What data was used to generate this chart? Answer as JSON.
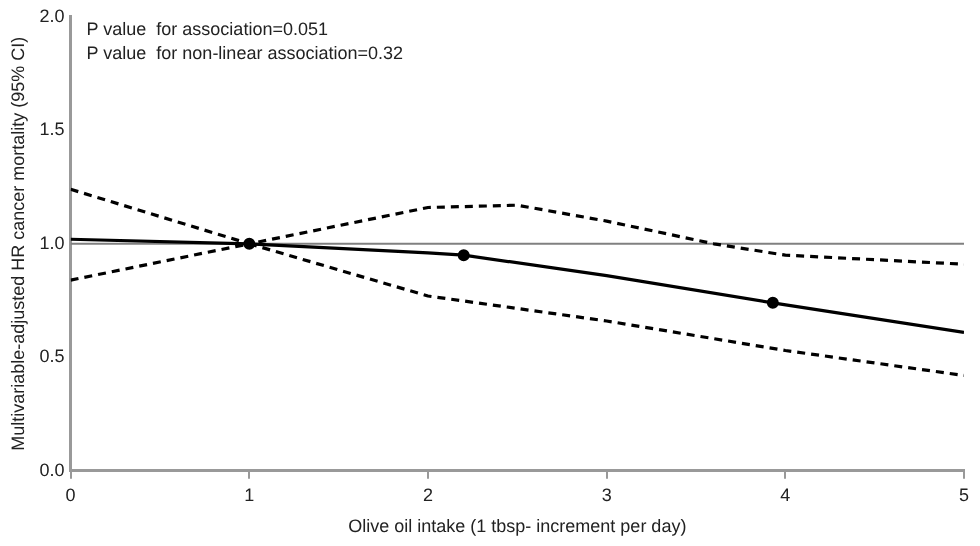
{
  "chart_data": {
    "type": "line",
    "xlabel": "Olive oil intake (1 tbsp- increment per day)",
    "ylabel": "Multivariable-adjusted HR cancer mortality (95% CI)",
    "annotations": [
      "P value  for association=0.051",
      "P value  for non-linear association=0.32"
    ],
    "series": [
      {
        "color": "#000000",
        "line_style": "solid",
        "x": [
          0,
          1,
          2,
          2.2,
          3,
          3.93,
          5
        ],
        "values": [
          1.02,
          1.0,
          0.96,
          0.95,
          0.86,
          0.74,
          0.61
        ]
      },
      {
        "color": "#000000",
        "line_style": "dashed",
        "x": [
          0,
          1,
          2,
          2.5,
          3,
          3.6,
          4,
          5
        ],
        "values": [
          1.24,
          1.0,
          1.16,
          1.17,
          1.1,
          1.0,
          0.95,
          0.91
        ]
      },
      {
        "color": "#000000",
        "line_style": "dashed",
        "x": [
          0,
          1,
          2,
          3,
          4,
          5
        ],
        "values": [
          0.84,
          1.0,
          0.77,
          0.66,
          0.53,
          0.42
        ]
      },
      {
        "type": "scatter",
        "color": "#000000",
        "marker": "circle",
        "x": [
          1,
          2.2,
          3.93
        ],
        "values": [
          1.0,
          0.95,
          0.74
        ]
      }
    ],
    "ref_lines": [
      {
        "axis": "y",
        "value": 1.0,
        "color": "#808080"
      }
    ],
    "xlim": [
      0,
      5
    ],
    "xticks": [
      0,
      1,
      2,
      3,
      4,
      5
    ],
    "ylim": [
      0,
      2
    ],
    "yticks": [
      {
        "value": 0,
        "label": "0.0"
      },
      {
        "value": 0.5,
        "label": "0.5"
      },
      {
        "value": 1,
        "label": "1.0"
      },
      {
        "value": 1.5,
        "label": "1.5"
      },
      {
        "value": 2,
        "label": "2.0"
      }
    ],
    "grid": false,
    "legend": false
  }
}
